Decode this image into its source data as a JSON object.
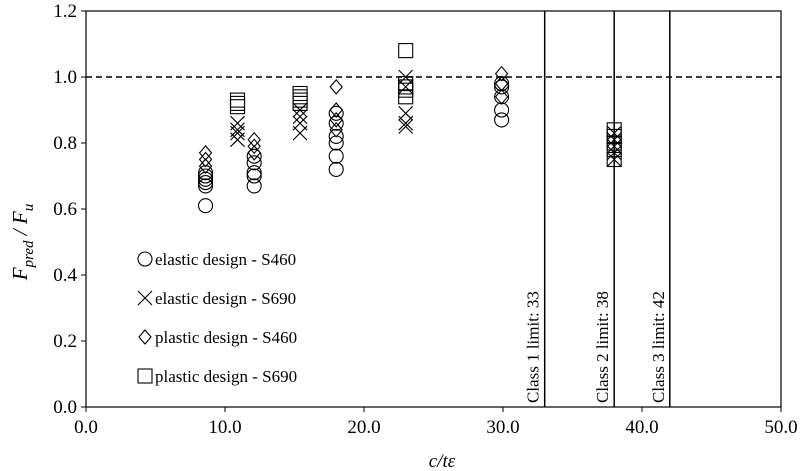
{
  "chart_data": {
    "type": "scatter",
    "title": "",
    "xlabel": "c/tε",
    "ylabel": {
      "base1": "F",
      "sub1": "pred",
      "sep": " / ",
      "base2": "F",
      "sub2": "u"
    },
    "xlim": [
      0,
      50
    ],
    "ylim": [
      0,
      1.2
    ],
    "xticks": [
      "0.0",
      "10.0",
      "20.0",
      "30.0",
      "40.0",
      "50.0"
    ],
    "yticks": [
      "0.0",
      "0.2",
      "0.4",
      "0.6",
      "0.8",
      "1.0",
      "1.2"
    ],
    "xtick_values": [
      0,
      10,
      20,
      30,
      40,
      50
    ],
    "ytick_values": [
      0,
      0.2,
      0.4,
      0.6,
      0.8,
      1.0,
      1.2
    ],
    "grid": false,
    "legend_position": "lower-left",
    "reference_line": {
      "y": 1.0,
      "style": "dashed"
    },
    "vertical_lines": [
      {
        "x": 33,
        "label": "Class 1 limit: 33"
      },
      {
        "x": 38,
        "label": "Class 2 limit: 38"
      },
      {
        "x": 42,
        "label": "Class 3 limit: 42"
      }
    ],
    "series": [
      {
        "name": "elastic design - S460",
        "marker": "circle",
        "points": [
          [
            8.6,
            0.61
          ],
          [
            8.6,
            0.67
          ],
          [
            8.6,
            0.68
          ],
          [
            8.6,
            0.69
          ],
          [
            8.6,
            0.7
          ],
          [
            8.6,
            0.71
          ],
          [
            12.1,
            0.67
          ],
          [
            12.1,
            0.7
          ],
          [
            12.1,
            0.71
          ],
          [
            12.1,
            0.74
          ],
          [
            12.1,
            0.76
          ],
          [
            18.0,
            0.72
          ],
          [
            18.0,
            0.76
          ],
          [
            18.0,
            0.8
          ],
          [
            18.0,
            0.82
          ],
          [
            18.0,
            0.86
          ],
          [
            18.0,
            0.89
          ],
          [
            29.9,
            0.87
          ],
          [
            29.9,
            0.9
          ],
          [
            29.9,
            0.94
          ],
          [
            29.9,
            0.97
          ],
          [
            29.9,
            0.98
          ]
        ]
      },
      {
        "name": "elastic design - S690",
        "marker": "x",
        "points": [
          [
            10.9,
            0.81
          ],
          [
            10.9,
            0.83
          ],
          [
            10.9,
            0.84
          ],
          [
            10.9,
            0.86
          ],
          [
            15.4,
            0.83
          ],
          [
            15.4,
            0.86
          ],
          [
            15.4,
            0.88
          ],
          [
            15.4,
            0.9
          ],
          [
            23.0,
            0.85
          ],
          [
            23.0,
            0.86
          ],
          [
            23.0,
            0.89
          ],
          [
            23.0,
            0.97
          ],
          [
            23.0,
            1.0
          ],
          [
            38.0,
            0.75
          ],
          [
            38.0,
            0.77
          ],
          [
            38.0,
            0.79
          ],
          [
            38.0,
            0.81
          ],
          [
            38.0,
            0.83
          ]
        ]
      },
      {
        "name": "plastic design - S460",
        "marker": "diamond",
        "points": [
          [
            8.6,
            0.73
          ],
          [
            8.6,
            0.75
          ],
          [
            8.6,
            0.77
          ],
          [
            12.1,
            0.77
          ],
          [
            12.1,
            0.79
          ],
          [
            12.1,
            0.81
          ],
          [
            18.0,
            0.84
          ],
          [
            18.0,
            0.87
          ],
          [
            18.0,
            0.9
          ],
          [
            18.0,
            0.97
          ],
          [
            29.9,
            0.94
          ],
          [
            29.9,
            0.98
          ],
          [
            29.9,
            1.01
          ]
        ]
      },
      {
        "name": "plastic design - S690",
        "marker": "square",
        "points": [
          [
            10.9,
            0.91
          ],
          [
            10.9,
            0.92
          ],
          [
            10.9,
            0.93
          ],
          [
            15.4,
            0.92
          ],
          [
            15.4,
            0.93
          ],
          [
            15.4,
            0.94
          ],
          [
            15.4,
            0.95
          ],
          [
            23.0,
            0.94
          ],
          [
            23.0,
            0.96
          ],
          [
            23.0,
            0.97
          ],
          [
            23.0,
            0.98
          ],
          [
            23.0,
            1.08
          ],
          [
            38.0,
            0.75
          ],
          [
            38.0,
            0.78
          ],
          [
            38.0,
            0.8
          ],
          [
            38.0,
            0.82
          ],
          [
            38.0,
            0.84
          ]
        ]
      }
    ]
  }
}
